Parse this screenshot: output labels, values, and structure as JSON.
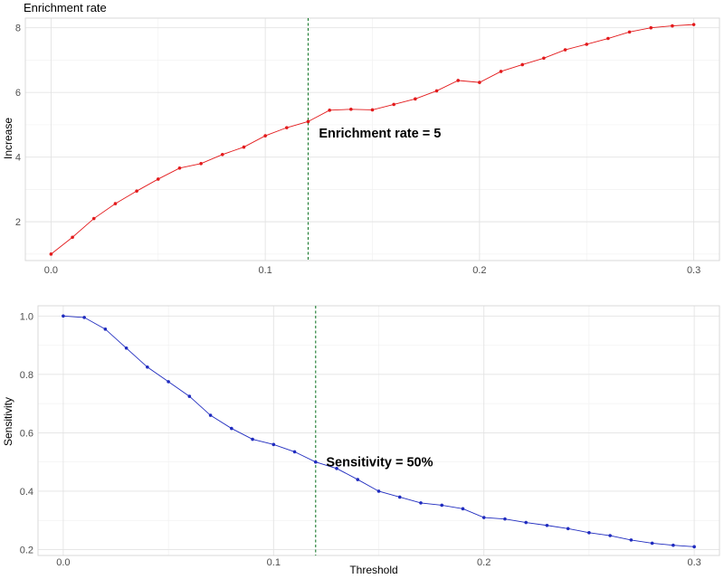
{
  "chart_data": [
    {
      "type": "line",
      "title": "Enrichment rate",
      "xlabel": "",
      "ylabel": "Increase",
      "xlim": [
        -0.012,
        0.312
      ],
      "ylim": [
        0.8,
        8.3
      ],
      "x_ticks": [
        0.0,
        0.1,
        0.2,
        0.3
      ],
      "x_tick_labels": [
        "0.0",
        "0.1",
        "0.2",
        "0.3"
      ],
      "y_ticks": [
        2,
        4,
        6,
        8
      ],
      "y_tick_labels": [
        "2",
        "4",
        "6",
        "8"
      ],
      "grid": true,
      "line_color": "#e31a1c",
      "threshold_line": {
        "x": 0.12,
        "color": "#1a7a2e",
        "style": "dashed"
      },
      "annotation": {
        "text": "Enrichment rate = 5",
        "x": 0.125,
        "y": 4.75
      },
      "series": [
        {
          "x": [
            0.0,
            0.01,
            0.02,
            0.03,
            0.04,
            0.05,
            0.06,
            0.07,
            0.08,
            0.09,
            0.1,
            0.11,
            0.12,
            0.13,
            0.14,
            0.15,
            0.16,
            0.17,
            0.18,
            0.19,
            0.2,
            0.21,
            0.22,
            0.23,
            0.24,
            0.25,
            0.26,
            0.27,
            0.28,
            0.29,
            0.3
          ],
          "values": [
            1.0,
            1.52,
            2.1,
            2.56,
            2.95,
            3.32,
            3.66,
            3.8,
            4.08,
            4.31,
            4.66,
            4.91,
            5.1,
            5.45,
            5.48,
            5.46,
            5.63,
            5.8,
            6.05,
            6.37,
            6.31,
            6.65,
            6.86,
            7.06,
            7.32,
            7.49,
            7.67,
            7.87,
            8.0,
            8.06,
            8.1
          ]
        }
      ]
    },
    {
      "type": "line",
      "title": "",
      "xlabel": "Threshold",
      "ylabel": "Sensitivity",
      "xlim": [
        -0.012,
        0.312
      ],
      "ylim": [
        0.18,
        1.035
      ],
      "x_ticks": [
        0.0,
        0.1,
        0.2,
        0.3
      ],
      "x_tick_labels": [
        "0.0",
        "0.1",
        "0.2",
        "0.3"
      ],
      "y_ticks": [
        0.2,
        0.4,
        0.6,
        0.8,
        1.0
      ],
      "y_tick_labels": [
        "0.2",
        "0.4",
        "0.6",
        "0.8",
        "1.0"
      ],
      "grid": true,
      "line_color": "#1f2bbf",
      "threshold_line": {
        "x": 0.12,
        "color": "#1a7a2e",
        "style": "dashed"
      },
      "annotation": {
        "text": "Sensitivity = 50%",
        "x": 0.125,
        "y": 0.5
      },
      "series": [
        {
          "x": [
            0.0,
            0.01,
            0.02,
            0.03,
            0.04,
            0.05,
            0.06,
            0.07,
            0.08,
            0.09,
            0.1,
            0.11,
            0.12,
            0.13,
            0.14,
            0.15,
            0.16,
            0.17,
            0.18,
            0.19,
            0.2,
            0.21,
            0.22,
            0.23,
            0.24,
            0.25,
            0.26,
            0.27,
            0.28,
            0.29,
            0.3
          ],
          "values": [
            1.0,
            0.995,
            0.955,
            0.89,
            0.825,
            0.775,
            0.725,
            0.66,
            0.615,
            0.578,
            0.56,
            0.535,
            0.5,
            0.478,
            0.44,
            0.4,
            0.38,
            0.36,
            0.352,
            0.34,
            0.31,
            0.305,
            0.293,
            0.283,
            0.272,
            0.258,
            0.248,
            0.233,
            0.222,
            0.215,
            0.21
          ]
        }
      ]
    }
  ]
}
